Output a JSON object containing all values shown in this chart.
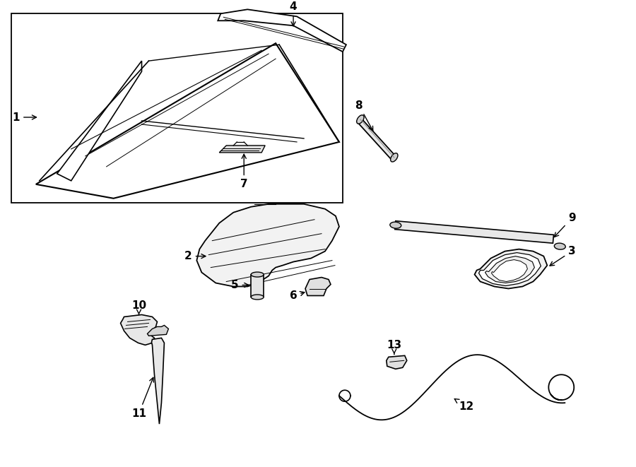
{
  "background_color": "#ffffff",
  "line_color": "#000000",
  "figure_width": 9.0,
  "figure_height": 6.61,
  "dpi": 100
}
